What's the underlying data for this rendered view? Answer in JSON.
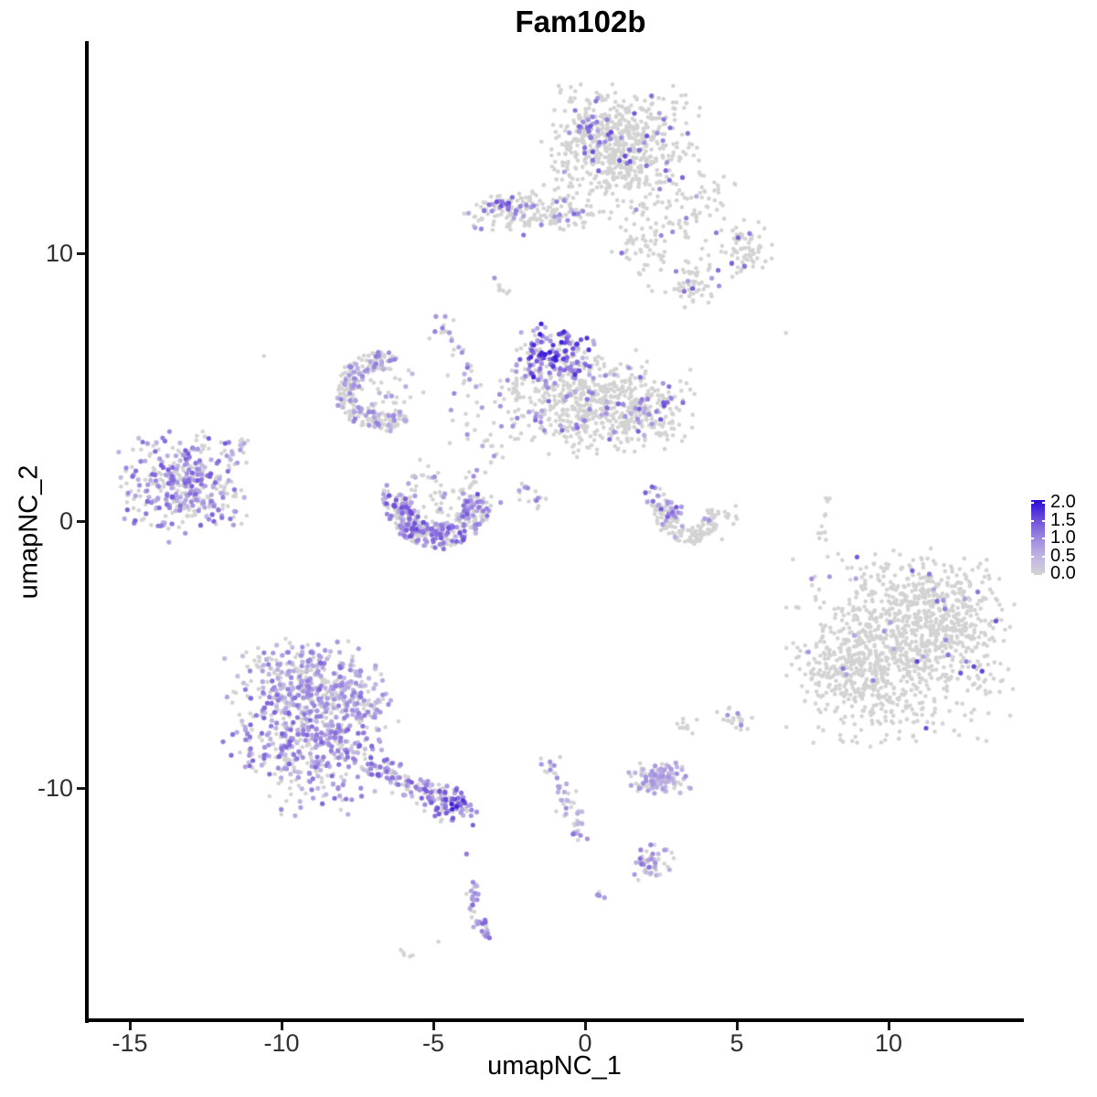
{
  "title": "Fam102b",
  "axes": {
    "x_label": "umapNC_1",
    "y_label": "umapNC_2",
    "x_tick_labels": [
      "-15",
      "-10",
      "-5",
      "0",
      "5",
      "10"
    ],
    "y_tick_labels": [
      "10",
      "0",
      "-10"
    ]
  },
  "legend": {
    "tick_labels": [
      "2.0",
      "1.5",
      "1.0",
      "0.5",
      "0.0"
    ],
    "stops": [
      {
        "t": 0.0,
        "color": "#D3D3D3"
      },
      {
        "t": 0.25,
        "color": "#BFB4E3"
      },
      {
        "t": 0.5,
        "color": "#9C86DF"
      },
      {
        "t": 0.75,
        "color": "#6C4BD9"
      },
      {
        "t": 1.0,
        "color": "#2A0BD9"
      }
    ]
  },
  "chart_data": {
    "type": "scatter",
    "title": "Fam102b",
    "xlabel": "umapNC_1",
    "ylabel": "umapNC_2",
    "x_tick_values": [
      -15,
      -10,
      -5,
      0,
      5,
      10
    ],
    "y_tick_values": [
      10,
      0,
      -10
    ],
    "xlim": [
      -16.5,
      14.5
    ],
    "ylim": [
      -18.7,
      17.9
    ],
    "grid": false,
    "legend_position": "right",
    "color_scale": {
      "min": 0.0,
      "max": 2.0,
      "ticks": [
        2.0,
        1.5,
        1.0,
        0.5,
        0.0
      ],
      "low": "#D3D3D3",
      "high": "#2A0BD9"
    },
    "point_radius_px": 2.3,
    "clusters": [
      {
        "name": "top-head",
        "kind": "gauss",
        "cx": 1.2,
        "cy": 13.9,
        "sx": 1.1,
        "sy": 1.05,
        "n": 620,
        "expr": 0.055,
        "lo": 0.6,
        "hi": 1.5
      },
      {
        "name": "top-head-hot",
        "kind": "gauss",
        "cx": 0.15,
        "cy": 14.6,
        "sx": 0.45,
        "sy": 0.55,
        "n": 55,
        "expr": 0.5,
        "lo": 0.5,
        "hi": 1.4
      },
      {
        "name": "top-south-trail",
        "kind": "gauss",
        "cx": 1.9,
        "cy": 10.48,
        "sx": 0.62,
        "sy": 0.9,
        "n": 80,
        "expr": 0.06,
        "lo": 0.6,
        "hi": 1.2
      },
      {
        "name": "top-branch-a",
        "kind": "gauss",
        "cx": 4.07,
        "cy": 12.12,
        "sx": 0.42,
        "sy": 0.44,
        "n": 28,
        "expr": 0.08,
        "lo": 0.6,
        "hi": 1.2
      },
      {
        "name": "top-branch-b",
        "kind": "gauss",
        "cx": 5.06,
        "cy": 10.21,
        "sx": 0.52,
        "sy": 0.52,
        "n": 75,
        "expr": 0.1,
        "lo": 0.7,
        "hi": 1.5
      },
      {
        "name": "top-branch-c",
        "kind": "gauss",
        "cx": 3.55,
        "cy": 8.84,
        "sx": 0.46,
        "sy": 0.44,
        "n": 55,
        "expr": 0.12,
        "lo": 0.6,
        "hi": 1.4
      },
      {
        "name": "top-branch-bridge",
        "kind": "gauss",
        "cx": 3.31,
        "cy": 11.16,
        "sx": 0.35,
        "sy": 0.35,
        "n": 14,
        "expr": 0.07,
        "lo": 0.6,
        "hi": 1.0
      },
      {
        "name": "upper-left-band",
        "kind": "gauss",
        "cx": -1.66,
        "cy": 11.57,
        "sx": 1.1,
        "sy": 0.4,
        "n": 185,
        "expr": 0.13,
        "lo": 0.5,
        "hi": 1.3
      },
      {
        "name": "upper-left-band-hot",
        "kind": "gauss",
        "cx": -2.59,
        "cy": 11.74,
        "sx": 0.16,
        "sy": 0.18,
        "n": 8,
        "expr": 0.85,
        "lo": 1.0,
        "hi": 1.8
      },
      {
        "name": "band-west-outliers",
        "kind": "chain",
        "pts": [
          [
            -3.55,
            11.33
          ],
          [
            -3.37,
            10.89
          ]
        ],
        "w": 0.08,
        "n": 3,
        "expr": 0.4,
        "lo": 0.8,
        "hi": 1.1
      },
      {
        "name": "smear-a",
        "kind": "chain",
        "pts": [
          [
            -3.07,
            9.25
          ],
          [
            -2.56,
            8.44
          ]
        ],
        "w": 0.1,
        "n": 8,
        "expr": 0.13,
        "lo": 0.8,
        "hi": 1.0
      },
      {
        "name": "knot",
        "kind": "gauss",
        "cx": -4.64,
        "cy": 7.3,
        "sx": 0.22,
        "sy": 0.26,
        "n": 13,
        "expr": 0.45,
        "lo": 0.6,
        "hi": 1.4
      },
      {
        "name": "knot-chain",
        "kind": "chain",
        "pts": [
          [
            -4.31,
            6.58
          ],
          [
            -3.73,
            5.25
          ]
        ],
        "w": 0.12,
        "n": 11,
        "expr": 0.55,
        "lo": 0.5,
        "hi": 1.3
      },
      {
        "name": "hook-connector",
        "kind": "gauss",
        "cx": -3.82,
        "cy": 4.02,
        "sx": 0.5,
        "sy": 0.8,
        "n": 22,
        "expr": 0.25,
        "lo": 0.5,
        "hi": 1.1
      },
      {
        "name": "hook-arc",
        "kind": "arc",
        "cx": -6.78,
        "cy": 4.84,
        "rx": 1.36,
        "ry": 1.44,
        "a0": 60,
        "a1": 320,
        "th": 0.45,
        "n": 230,
        "expr": 0.32,
        "lo": 0.4,
        "hi": 1.1
      },
      {
        "name": "hook-fill",
        "kind": "gauss",
        "cx": -6.7,
        "cy": 4.9,
        "sx": 0.6,
        "sy": 0.6,
        "n": 40,
        "expr": 0.2,
        "lo": 0.4,
        "hi": 0.9
      },
      {
        "name": "connector-2",
        "kind": "gauss",
        "cx": -3.01,
        "cy": 2.48,
        "sx": 0.35,
        "sy": 0.7,
        "n": 14,
        "expr": 0.15,
        "lo": 0.5,
        "hi": 0.9
      },
      {
        "name": "u-crescent-arc",
        "kind": "arc",
        "cx": -4.88,
        "cy": 0.84,
        "rx": 1.81,
        "ry": 1.88,
        "a0": 175,
        "a1": 365,
        "th": 0.5,
        "n": 330,
        "expr": 0.5,
        "lo": 0.4,
        "hi": 1.5
      },
      {
        "name": "u-crescent-fill",
        "kind": "gauss",
        "cx": -4.82,
        "cy": 0.95,
        "sx": 1.0,
        "sy": 0.6,
        "n": 70,
        "expr": 0.25,
        "lo": 0.4,
        "hi": 1.0
      },
      {
        "name": "central-hot",
        "kind": "gauss",
        "cx": -0.96,
        "cy": 6.17,
        "sx": 0.6,
        "sy": 0.55,
        "n": 160,
        "expr": 0.68,
        "lo": 0.5,
        "hi": 1.9
      },
      {
        "name": "central-main",
        "kind": "gauss",
        "cx": -0.24,
        "cy": 4.39,
        "sx": 1.0,
        "sy": 0.85,
        "n": 400,
        "expr": 0.09,
        "lo": 0.5,
        "hi": 1.3
      },
      {
        "name": "central-right",
        "kind": "gauss",
        "cx": 1.69,
        "cy": 4.19,
        "sx": 0.81,
        "sy": 0.72,
        "n": 250,
        "expr": 0.12,
        "lo": 0.5,
        "hi": 1.5
      },
      {
        "name": "central-left-arm",
        "kind": "gauss",
        "cx": -2.41,
        "cy": 4.56,
        "sx": 0.3,
        "sy": 0.68,
        "n": 30,
        "expr": 0.2,
        "lo": 0.5,
        "hi": 1.1
      },
      {
        "name": "central-trail",
        "kind": "chain",
        "pts": [
          [
            -2.26,
            1.52
          ],
          [
            -1.36,
            0.6
          ]
        ],
        "w": 0.25,
        "n": 16,
        "expr": 0.3,
        "lo": 0.5,
        "hi": 1.2
      },
      {
        "name": "crescent-right-arm",
        "kind": "chain",
        "pts": [
          [
            1.99,
            1.15
          ],
          [
            3.13,
            0.05
          ]
        ],
        "w": 0.2,
        "n": 45,
        "expr": 0.5,
        "lo": 0.5,
        "hi": 1.4
      },
      {
        "name": "crescent-right-arc",
        "kind": "arc",
        "cx": 3.46,
        "cy": 0.39,
        "rx": 1.14,
        "ry": 1.23,
        "a0": 170,
        "a1": 360,
        "th": 0.5,
        "n": 130,
        "expr": 0.07,
        "lo": 0.5,
        "hi": 1.0
      },
      {
        "name": "crescent-right-dots",
        "kind": "gauss",
        "cx": 4.88,
        "cy": -0.09,
        "sx": 0.3,
        "sy": 0.3,
        "n": 8,
        "expr": 0,
        "lo": 0,
        "hi": 0
      },
      {
        "name": "far-left",
        "kind": "gauss",
        "cx": -13.16,
        "cy": 1.35,
        "sx": 0.92,
        "sy": 0.9,
        "n": 360,
        "expr": 0.55,
        "lo": 0.35,
        "hi": 1.4
      },
      {
        "name": "far-left-tail",
        "kind": "chain",
        "pts": [
          [
            -11.75,
            2.38
          ],
          [
            -11.2,
            2.96
          ]
        ],
        "w": 0.12,
        "n": 12,
        "expr": 0.5,
        "lo": 0.4,
        "hi": 1.1
      },
      {
        "name": "far-left-west",
        "kind": "gauss",
        "cx": -14.95,
        "cy": 1.0,
        "sx": 0.25,
        "sy": 0.6,
        "n": 4,
        "expr": 0.3,
        "lo": 0.8,
        "hi": 1.1
      },
      {
        "name": "right-gray-chain",
        "kind": "chain",
        "pts": [
          [
            8.07,
            0.97
          ],
          [
            7.74,
            -0.43
          ],
          [
            7.77,
            -0.74
          ]
        ],
        "w": 0.1,
        "n": 12,
        "expr": 0,
        "lo": 0,
        "hi": 0
      },
      {
        "name": "right-main",
        "kind": "gauss",
        "cx": 10.39,
        "cy": -4.87,
        "sx": 1.57,
        "sy": 1.61,
        "n": 780,
        "expr": 0.03,
        "lo": 0.6,
        "hi": 1.6
      },
      {
        "name": "right-sw",
        "kind": "gauss",
        "cx": 8.67,
        "cy": -5.73,
        "sx": 0.81,
        "sy": 0.89,
        "n": 190,
        "expr": 0.02,
        "lo": 0.6,
        "hi": 1.2
      },
      {
        "name": "right-ne",
        "kind": "gauss",
        "cx": 12.11,
        "cy": -3.71,
        "sx": 0.84,
        "sy": 0.96,
        "n": 190,
        "expr": 0.03,
        "lo": 0.6,
        "hi": 1.4
      },
      {
        "name": "right-north",
        "kind": "gauss",
        "cx": 10.84,
        "cy": -2.58,
        "sx": 1.0,
        "sy": 0.58,
        "n": 110,
        "expr": 0.03,
        "lo": 0.6,
        "hi": 1.2
      },
      {
        "name": "bottom-left-core",
        "kind": "gauss",
        "cx": -9.04,
        "cy": -7.88,
        "sx": 1.22,
        "sy": 1.37,
        "n": 560,
        "expr": 0.6,
        "lo": 0.3,
        "hi": 1.3
      },
      {
        "name": "bottom-left-top",
        "kind": "gauss",
        "cx": -9.34,
        "cy": -5.76,
        "sx": 0.84,
        "sy": 0.65,
        "n": 170,
        "expr": 0.5,
        "lo": 0.3,
        "hi": 1.1
      },
      {
        "name": "bottom-left-ne",
        "kind": "gauss",
        "cx": -7.65,
        "cy": -6.62,
        "sx": 0.63,
        "sy": 0.65,
        "n": 110,
        "expr": 0.5,
        "lo": 0.3,
        "hi": 1.1
      },
      {
        "name": "bottom-left-tail",
        "kind": "chain",
        "pts": [
          [
            -7.08,
            -9.25
          ],
          [
            -5.27,
            -10.17
          ],
          [
            -3.98,
            -10.82
          ]
        ],
        "w": 0.3,
        "n": 150,
        "expr": 0.62,
        "lo": 0.4,
        "hi": 1.4
      },
      {
        "name": "tail-tip-hot",
        "kind": "gauss",
        "cx": -4.31,
        "cy": -10.55,
        "sx": 0.35,
        "sy": 0.3,
        "n": 30,
        "expr": 0.75,
        "lo": 0.6,
        "hi": 1.9
      },
      {
        "name": "dot-purple-single",
        "kind": "chain",
        "pts": [
          [
            -3.89,
            -12.5
          ]
        ],
        "w": 0.02,
        "n": 1,
        "expr": 1,
        "lo": 1.1,
        "hi": 1.1
      },
      {
        "name": "j-chain",
        "kind": "chain",
        "pts": [
          [
            -3.58,
            -13.45
          ],
          [
            -3.77,
            -14.21
          ],
          [
            -3.52,
            -14.96
          ],
          [
            -3.13,
            -15.5
          ]
        ],
        "w": 0.12,
        "n": 38,
        "expr": 0.7,
        "lo": 0.4,
        "hi": 1.3
      },
      {
        "name": "gray-dot-single",
        "kind": "chain",
        "pts": [
          [
            -4.82,
            -15.74
          ]
        ],
        "w": 0.02,
        "n": 1,
        "expr": 0,
        "lo": 0,
        "hi": 0
      },
      {
        "name": "gray-smear",
        "kind": "chain",
        "pts": [
          [
            -6.2,
            -16.1
          ],
          [
            -5.66,
            -16.39
          ]
        ],
        "w": 0.06,
        "n": 5,
        "expr": 0,
        "lo": 0,
        "hi": 0
      },
      {
        "name": "mid-bottom-knot",
        "kind": "gauss",
        "cx": -0.99,
        "cy": -9.18,
        "sx": 0.25,
        "sy": 0.3,
        "n": 12,
        "expr": 0.15,
        "lo": 0.8,
        "hi": 1.2
      },
      {
        "name": "mid-bottom-chain",
        "kind": "chain",
        "pts": [
          [
            -0.9,
            -9.76
          ],
          [
            -0.54,
            -10.62
          ],
          [
            -0.21,
            -11.47
          ],
          [
            -0.12,
            -12.15
          ]
        ],
        "w": 0.18,
        "n": 42,
        "expr": 0.5,
        "lo": 0.4,
        "hi": 1.2
      },
      {
        "name": "oval-small",
        "kind": "gauss",
        "cx": 2.41,
        "cy": -9.62,
        "sx": 0.46,
        "sy": 0.27,
        "n": 120,
        "expr": 0.5,
        "lo": 0.3,
        "hi": 0.9
      },
      {
        "name": "triangle-small",
        "kind": "gauss",
        "cx": 2.2,
        "cy": -12.74,
        "sx": 0.33,
        "sy": 0.31,
        "n": 50,
        "expr": 0.45,
        "lo": 0.4,
        "hi": 1.2
      },
      {
        "name": "tiny-pair",
        "kind": "chain",
        "pts": [
          [
            0.39,
            -13.86
          ],
          [
            0.57,
            -14.15
          ]
        ],
        "w": 0.05,
        "n": 4,
        "expr": 0.8,
        "lo": 0.7,
        "hi": 1.0
      },
      {
        "name": "small-blob-a",
        "kind": "gauss",
        "cx": 4.85,
        "cy": -7.4,
        "sx": 0.28,
        "sy": 0.27,
        "n": 22,
        "expr": 0.1,
        "lo": 0.8,
        "hi": 1.0
      },
      {
        "name": "small-blob-b",
        "kind": "gauss",
        "cx": 3.25,
        "cy": -7.71,
        "sx": 0.21,
        "sy": 0.17,
        "n": 10,
        "expr": 0,
        "lo": 0,
        "hi": 0
      },
      {
        "name": "isolated-dot-a",
        "kind": "chain",
        "pts": [
          [
            6.63,
            6.99
          ]
        ],
        "w": 0.02,
        "n": 1,
        "expr": 0,
        "lo": 0,
        "hi": 0
      },
      {
        "name": "isolated-dot-b",
        "kind": "chain",
        "pts": [
          [
            -10.54,
            6.14
          ]
        ],
        "w": 0.02,
        "n": 1,
        "expr": 0,
        "lo": 0,
        "hi": 0
      }
    ]
  }
}
